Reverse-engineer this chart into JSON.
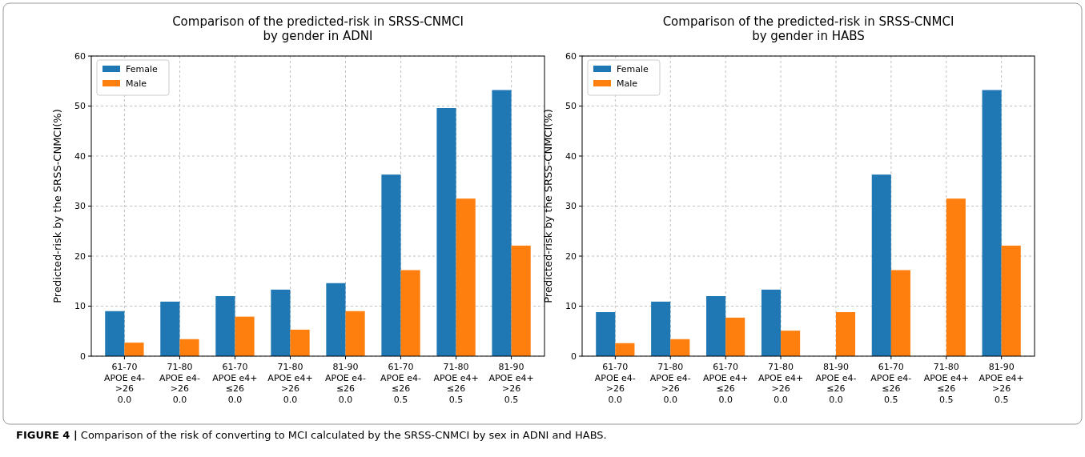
{
  "chart_data": [
    {
      "type": "bar",
      "title": "Comparison of the predicted-risk in SRSS-CNMCI\nby gender in ADNI",
      "ylabel": "Predicted-risk by the SRSS-CNMCI(%)",
      "categories": [
        "61-70\nAPOE e4-\n>26\n0.0",
        "71-80\nAPOE e4-\n>26\n0.0",
        "61-70\nAPOE e4+\n≤26\n0.0",
        "71-80\nAPOE e4+\n>26\n0.0",
        "81-90\nAPOE e4-\n≤26\n0.0",
        "61-70\nAPOE e4-\n≤26\n0.5",
        "71-80\nAPOE e4+\n≤26\n0.5",
        "81-90\nAPOE e4+\n>26\n0.5"
      ],
      "series": [
        {
          "name": "Female",
          "color": "#1f77b4",
          "values": [
            9.0,
            10.9,
            12.0,
            13.3,
            14.6,
            36.3,
            49.6,
            53.2
          ]
        },
        {
          "name": "Male",
          "color": "#ff7f0e",
          "values": [
            2.7,
            3.4,
            7.9,
            5.3,
            9.0,
            17.2,
            31.5,
            22.1
          ]
        }
      ],
      "ylim": [
        0,
        60
      ],
      "yticks": [
        0,
        10,
        20,
        30,
        40,
        50,
        60
      ],
      "grid": true,
      "legend": "top left",
      "annotations": [
        "FIGURE 4 | Comparison of the risk of converting to MCI calculated by the SRSS-CNMCI by sex in ADNI and HABS."
      ]
    },
    {
      "type": "bar",
      "title": "Comparison of the predicted-risk in SRSS-CNMCI\nby gender in HABS",
      "ylabel": "Predicted-risk by the SRSS-CNMCI(%)",
      "categories": [
        "61-70\nAPOE e4-\n>26\n0.0",
        "71-80\nAPOE e4-\n>26\n0.0",
        "61-70\nAPOE e4+\n≤26\n0.0",
        "71-80\nAPOE e4+\n>26\n0.0",
        "81-90\nAPOE e4-\n≤26\n0.0",
        "61-70\nAPOE e4-\n≤26\n0.5",
        "71-80\nAPOE e4+\n≤26\n0.5",
        "81-90\nAPOE e4+\n>26\n0.5"
      ],
      "series": [
        {
          "name": "Female",
          "color": "#1f77b4",
          "values": [
            8.8,
            10.9,
            12.0,
            13.3,
            null,
            36.3,
            null,
            53.2
          ]
        },
        {
          "name": "Male",
          "color": "#ff7f0e",
          "values": [
            2.6,
            3.4,
            7.7,
            5.1,
            8.8,
            17.2,
            31.5,
            22.1
          ]
        }
      ],
      "ylim": [
        0,
        60
      ],
      "yticks": [
        0,
        10,
        20,
        30,
        40,
        50,
        60
      ],
      "grid": true,
      "legend": "top left"
    }
  ]
}
